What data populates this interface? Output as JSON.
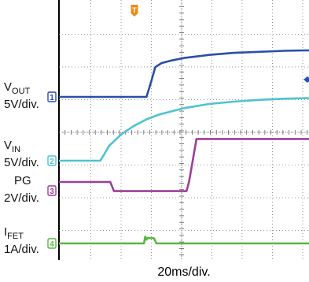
{
  "chart_data": {
    "type": "line",
    "title": "",
    "xlabel": "20ms/div.",
    "x_unit": "ms",
    "x_range": [
      0,
      200
    ],
    "grid": true,
    "trigger_marker": "T",
    "channels": [
      {
        "id": "1",
        "base": "V",
        "sub": "OUT",
        "scale": "5V/div.",
        "color": "#2b4fa8",
        "x": [
          0,
          70,
          74,
          77,
          82,
          90,
          100,
          120,
          140,
          160,
          180,
          200
        ],
        "y": [
          0,
          0,
          3.2,
          5.8,
          6.6,
          7.1,
          7.6,
          8.2,
          8.6,
          8.8,
          9.0,
          9.1
        ]
      },
      {
        "id": "2",
        "base": "V",
        "sub": "IN",
        "scale": "5V/div.",
        "color": "#4ec3cf",
        "x": [
          0,
          33,
          36,
          40,
          50,
          60,
          70,
          80,
          100,
          120,
          140,
          160,
          180,
          200
        ],
        "y": [
          0,
          0,
          1.0,
          2.5,
          4.5,
          5.9,
          7.0,
          7.8,
          8.9,
          9.6,
          10.0,
          10.3,
          10.5,
          10.6
        ]
      },
      {
        "id": "3",
        "base": "PG",
        "sub": "",
        "scale": "2V/div.",
        "color": "#9c3f98",
        "x": [
          0,
          41,
          44,
          102,
          104,
          110,
          200
        ],
        "y": [
          0,
          0,
          -1.1,
          -1.1,
          0,
          5.2,
          5.2
        ]
      },
      {
        "id": "4",
        "base": "I",
        "sub": "FET",
        "scale": "1A/div.",
        "color": "#5cb545",
        "x": [
          0,
          68,
          69,
          70,
          71,
          74,
          76,
          78,
          200
        ],
        "y": [
          0,
          0,
          0.9,
          0.5,
          0.75,
          0.7,
          0.7,
          0,
          0
        ]
      }
    ]
  }
}
